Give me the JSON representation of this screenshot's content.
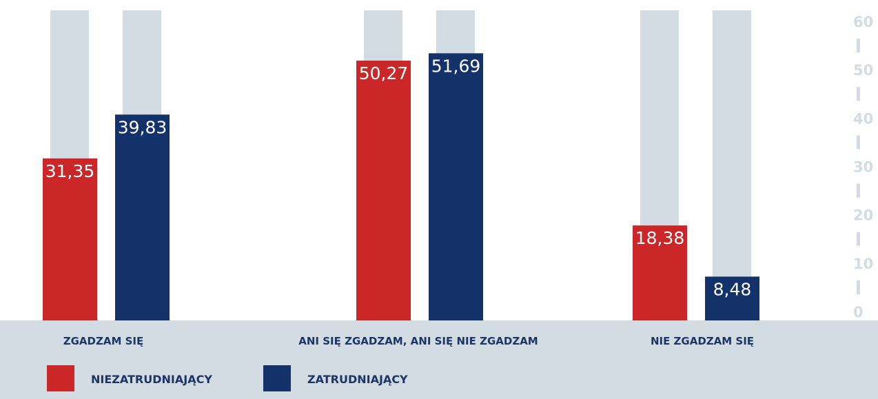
{
  "chart_data": {
    "type": "bar",
    "categories": [
      "ZGADZAM SIĘ",
      "ANI SIĘ ZGADZAM, ANI SIĘ NIE ZGADZAM",
      "NIE ZGADZAM SIĘ"
    ],
    "series": [
      {
        "name": "NIEZATRUDNIAJĄCY",
        "color": "#cb2728",
        "values": [
          31.35,
          50.27,
          18.38
        ],
        "value_labels": [
          "31,35",
          "50,27",
          "18,38"
        ]
      },
      {
        "name": "ZATRUDNIAJĄCY",
        "color": "#14326a",
        "values": [
          39.83,
          51.69,
          8.48
        ],
        "value_labels": [
          "39,83",
          "51,69",
          "8,48"
        ]
      }
    ],
    "ylim": [
      0,
      60
    ],
    "yticks": [
      0,
      10,
      20,
      30,
      40,
      50,
      60
    ],
    "track_color": "#d3dce3"
  }
}
